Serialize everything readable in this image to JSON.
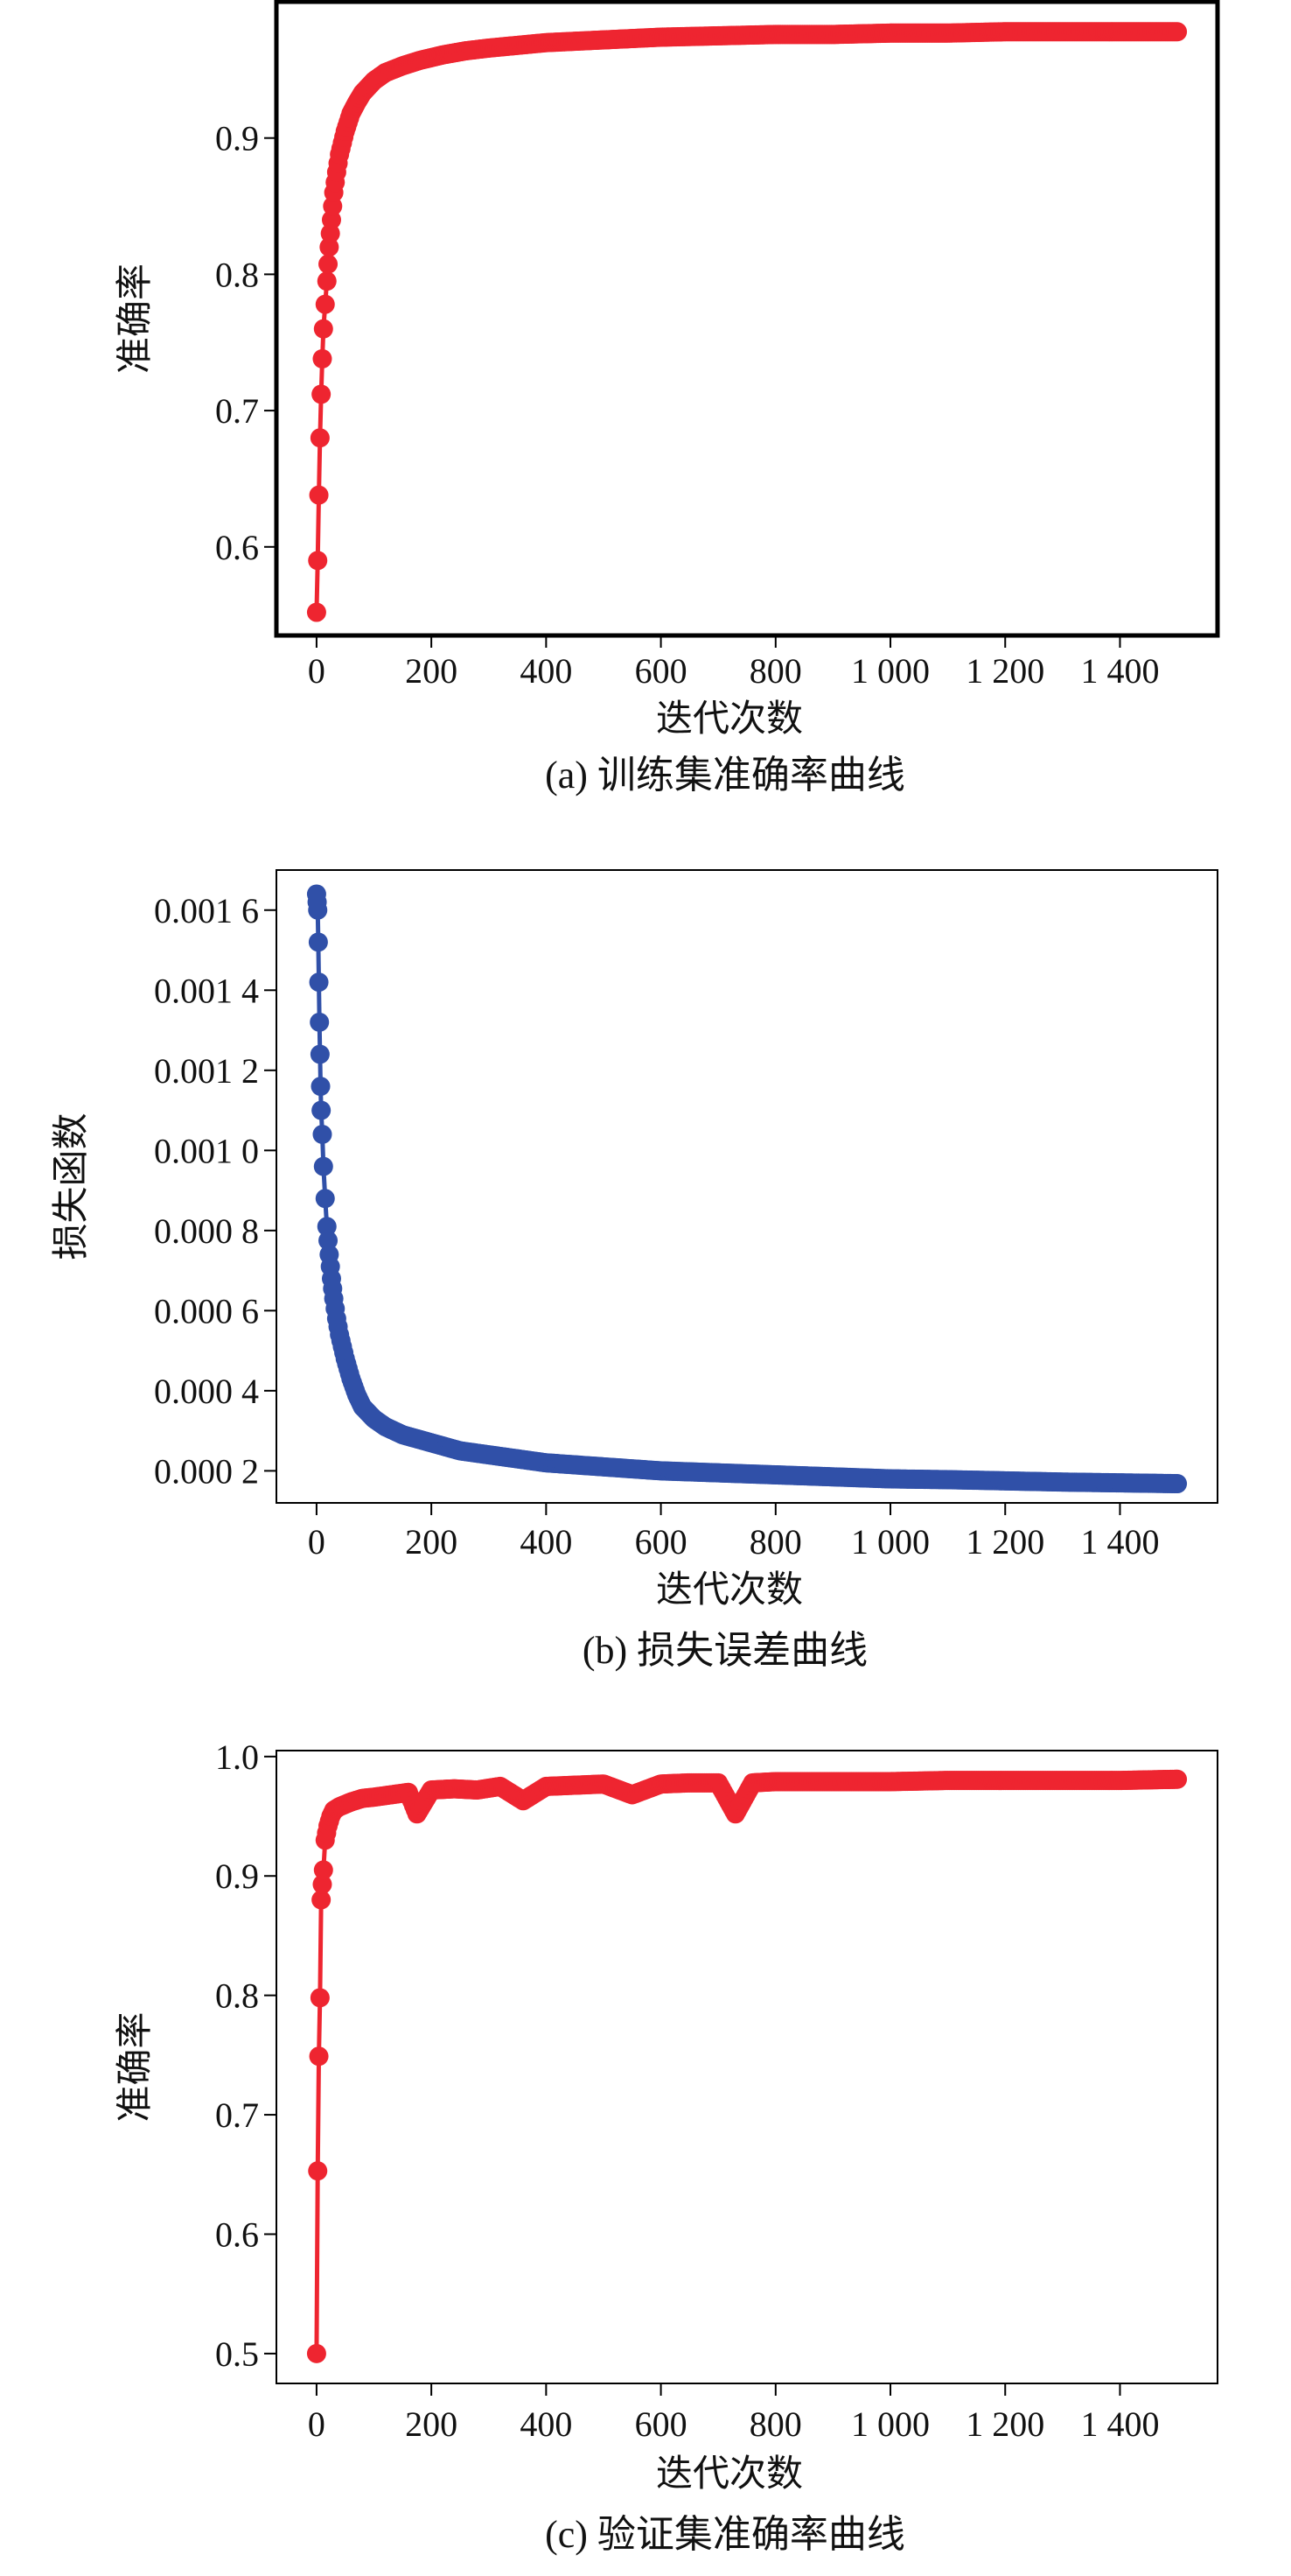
{
  "chart_data": [
    {
      "type": "line",
      "caption": "(a) 训练集准确率曲线",
      "xlabel": "迭代次数",
      "ylabel": "准确率",
      "xlim": [
        -70,
        1570
      ],
      "ylim": [
        0.535,
        1.0
      ],
      "xticks": [
        0,
        200,
        400,
        600,
        800,
        1000,
        1200,
        1400
      ],
      "xtick_labels": [
        "0",
        "200",
        "400",
        "600",
        "800",
        "1 000",
        "1 200",
        "1 400"
      ],
      "yticks": [
        0.6,
        0.7,
        0.8,
        0.9
      ],
      "ytick_labels": [
        "0.6",
        "0.7",
        "0.8",
        "0.9"
      ],
      "color": "#ee2530",
      "frame_bold": true,
      "series": [
        {
          "x": [
            0,
            2,
            4,
            6,
            8,
            10,
            12,
            15,
            18,
            22,
            26,
            30,
            35,
            40,
            50,
            60,
            70,
            80,
            100,
            120,
            150,
            180,
            220,
            260,
            300,
            350,
            400,
            500,
            600,
            700,
            800,
            900,
            1000,
            1100,
            1200,
            1300,
            1400,
            1500
          ],
          "y": [
            0.552,
            0.59,
            0.638,
            0.68,
            0.712,
            0.738,
            0.76,
            0.778,
            0.795,
            0.82,
            0.84,
            0.86,
            0.875,
            0.888,
            0.905,
            0.918,
            0.926,
            0.933,
            0.942,
            0.948,
            0.953,
            0.957,
            0.961,
            0.964,
            0.966,
            0.968,
            0.97,
            0.972,
            0.974,
            0.975,
            0.976,
            0.976,
            0.977,
            0.977,
            0.978,
            0.978,
            0.978,
            0.978
          ]
        }
      ]
    },
    {
      "type": "line",
      "caption": "(b) 损失误差曲线",
      "xlabel": "迭代次数",
      "ylabel": "损失函数",
      "xlim": [
        -70,
        1570
      ],
      "ylim": [
        0.00012,
        0.0017
      ],
      "xticks": [
        0,
        200,
        400,
        600,
        800,
        1000,
        1200,
        1400
      ],
      "xtick_labels": [
        "0",
        "200",
        "400",
        "600",
        "800",
        "1 000",
        "1 200",
        "1 400"
      ],
      "yticks": [
        0.0002,
        0.0004,
        0.0006,
        0.0008,
        0.001,
        0.0012,
        0.0014,
        0.0016
      ],
      "ytick_labels": [
        "0.000 2",
        "0.000 4",
        "0.000 6",
        "0.000 8",
        "0.001 0",
        "0.001 2",
        "0.001 4",
        "0.001 6"
      ],
      "color": "#3050a8",
      "frame_bold": false,
      "series": [
        {
          "x": [
            0,
            1,
            2,
            3,
            4,
            5,
            6,
            7,
            8,
            10,
            12,
            15,
            18,
            22,
            26,
            30,
            35,
            40,
            50,
            60,
            70,
            80,
            100,
            120,
            150,
            200,
            250,
            300,
            400,
            500,
            600,
            700,
            800,
            900,
            1000,
            1100,
            1200,
            1300,
            1400,
            1500
          ],
          "y": [
            0.00164,
            0.00162,
            0.0016,
            0.00152,
            0.00142,
            0.00132,
            0.00124,
            0.00116,
            0.0011,
            0.00104,
            0.00096,
            0.00088,
            0.00081,
            0.00074,
            0.00068,
            0.00063,
            0.00058,
            0.00054,
            0.00048,
            0.00043,
            0.00039,
            0.00036,
            0.00033,
            0.00031,
            0.00029,
            0.00027,
            0.00025,
            0.00024,
            0.00022,
            0.00021,
            0.0002,
            0.000195,
            0.00019,
            0.000185,
            0.00018,
            0.000178,
            0.000175,
            0.000172,
            0.00017,
            0.000168
          ]
        }
      ]
    },
    {
      "type": "line",
      "caption": "(c) 验证集准确率曲线",
      "xlabel": "迭代次数",
      "ylabel": "准确率",
      "xlim": [
        -70,
        1570
      ],
      "ylim": [
        0.475,
        1.005
      ],
      "xticks": [
        0,
        200,
        400,
        600,
        800,
        1000,
        1200,
        1400
      ],
      "xtick_labels": [
        "0",
        "200",
        "400",
        "600",
        "800",
        "1 000",
        "1 200",
        "1 400"
      ],
      "yticks": [
        0.5,
        0.6,
        0.7,
        0.8,
        0.9,
        1.0
      ],
      "ytick_labels": [
        "0.5",
        "0.6",
        "0.7",
        "0.8",
        "0.9",
        "1.0"
      ],
      "color": "#ee2530",
      "frame_bold": false,
      "series": [
        {
          "x": [
            0,
            2,
            4,
            6,
            8,
            10,
            12,
            15,
            20,
            25,
            30,
            40,
            60,
            80,
            100,
            130,
            160,
            175,
            200,
            240,
            280,
            320,
            360,
            400,
            450,
            500,
            550,
            600,
            650,
            700,
            730,
            760,
            800,
            900,
            1000,
            1100,
            1200,
            1300,
            1400,
            1500
          ],
          "y": [
            0.5,
            0.653,
            0.749,
            0.798,
            0.88,
            0.893,
            0.905,
            0.93,
            0.942,
            0.95,
            0.955,
            0.958,
            0.962,
            0.965,
            0.966,
            0.968,
            0.97,
            0.952,
            0.972,
            0.973,
            0.972,
            0.975,
            0.963,
            0.975,
            0.976,
            0.977,
            0.968,
            0.977,
            0.978,
            0.978,
            0.952,
            0.978,
            0.979,
            0.979,
            0.979,
            0.98,
            0.98,
            0.98,
            0.98,
            0.981
          ]
        }
      ]
    }
  ]
}
